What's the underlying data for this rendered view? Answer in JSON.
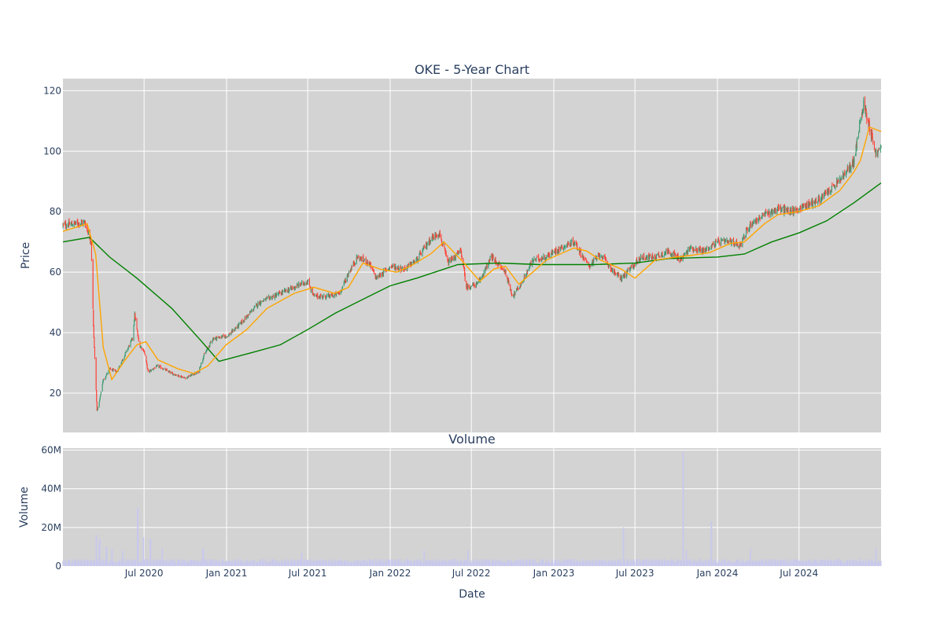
{
  "chart_data": [
    {
      "type": "candlestick",
      "title": "OKE - 5-Year Chart",
      "ylabel": "Price",
      "xlabel": "",
      "x_range": [
        "2020-01-02",
        "2024-12-31"
      ],
      "ylim": [
        7,
        124
      ],
      "y_ticks": [
        20,
        40,
        60,
        80,
        100,
        120
      ],
      "grid": true,
      "background": "#d3d3d3",
      "colors": {
        "up": "#3d9970",
        "down": "#ff4136",
        "ma_short": "#ffa500",
        "ma_long": "#008000"
      },
      "close_keypoints": [
        [
          "2020-01-02",
          75.5
        ],
        [
          "2020-02-20",
          76.5
        ],
        [
          "2020-03-05",
          70
        ],
        [
          "2020-03-10",
          42
        ],
        [
          "2020-03-18",
          14
        ],
        [
          "2020-03-23",
          17
        ],
        [
          "2020-03-31",
          24
        ],
        [
          "2020-04-15",
          28
        ],
        [
          "2020-05-01",
          27
        ],
        [
          "2020-05-20",
          33
        ],
        [
          "2020-06-05",
          38
        ],
        [
          "2020-06-10",
          46
        ],
        [
          "2020-06-20",
          36
        ],
        [
          "2020-07-01",
          34
        ],
        [
          "2020-07-10",
          27
        ],
        [
          "2020-08-01",
          29
        ],
        [
          "2020-09-01",
          26.5
        ],
        [
          "2020-10-01",
          25
        ],
        [
          "2020-10-30",
          27
        ],
        [
          "2020-11-10",
          32
        ],
        [
          "2020-12-01",
          38
        ],
        [
          "2021-01-04",
          39
        ],
        [
          "2021-02-01",
          43
        ],
        [
          "2021-03-15",
          50
        ],
        [
          "2021-05-01",
          53
        ],
        [
          "2021-06-01",
          55
        ],
        [
          "2021-07-01",
          57
        ],
        [
          "2021-07-15",
          52
        ],
        [
          "2021-08-20",
          52
        ],
        [
          "2021-09-10",
          53
        ],
        [
          "2021-10-01",
          60
        ],
        [
          "2021-10-20",
          65
        ],
        [
          "2021-11-15",
          63
        ],
        [
          "2021-12-01",
          58
        ],
        [
          "2022-01-03",
          62
        ],
        [
          "2022-02-01",
          61
        ],
        [
          "2022-03-01",
          64
        ],
        [
          "2022-04-01",
          71
        ],
        [
          "2022-04-20",
          73
        ],
        [
          "2022-05-10",
          63
        ],
        [
          "2022-06-08",
          67
        ],
        [
          "2022-06-20",
          55
        ],
        [
          "2022-07-15",
          56
        ],
        [
          "2022-08-15",
          65
        ],
        [
          "2022-09-15",
          60
        ],
        [
          "2022-10-01",
          52
        ],
        [
          "2022-10-20",
          56
        ],
        [
          "2022-11-15",
          64
        ],
        [
          "2022-12-15",
          65
        ],
        [
          "2023-01-15",
          68
        ],
        [
          "2023-02-15",
          70
        ],
        [
          "2023-03-20",
          62
        ],
        [
          "2023-04-15",
          66
        ],
        [
          "2023-05-15",
          60
        ],
        [
          "2023-06-01",
          58
        ],
        [
          "2023-06-20",
          61
        ],
        [
          "2023-07-15",
          65
        ],
        [
          "2023-08-15",
          65
        ],
        [
          "2023-09-15",
          67
        ],
        [
          "2023-10-10",
          64
        ],
        [
          "2023-11-01",
          68
        ],
        [
          "2023-12-01",
          67
        ],
        [
          "2024-01-02",
          70
        ],
        [
          "2024-02-01",
          70
        ],
        [
          "2024-02-20",
          69
        ],
        [
          "2024-03-15",
          76
        ],
        [
          "2024-04-15",
          79
        ],
        [
          "2024-05-15",
          81
        ],
        [
          "2024-06-15",
          80
        ],
        [
          "2024-07-15",
          82
        ],
        [
          "2024-08-15",
          84
        ],
        [
          "2024-09-15",
          88
        ],
        [
          "2024-10-15",
          93
        ],
        [
          "2024-11-01",
          97
        ],
        [
          "2024-11-06",
          102
        ],
        [
          "2024-11-22",
          116
        ],
        [
          "2024-12-10",
          105
        ],
        [
          "2024-12-20",
          99
        ],
        [
          "2024-12-31",
          101
        ]
      ],
      "ma_short": {
        "points": [
          [
            "2020-01-02",
            73.5
          ],
          [
            "2020-02-25",
            76
          ],
          [
            "2020-03-15",
            66
          ],
          [
            "2020-04-01",
            35
          ],
          [
            "2020-04-20",
            24.5
          ],
          [
            "2020-05-20",
            31
          ],
          [
            "2020-06-15",
            36
          ],
          [
            "2020-07-05",
            37
          ],
          [
            "2020-08-01",
            31
          ],
          [
            "2020-09-15",
            28
          ],
          [
            "2020-10-20",
            26.5
          ],
          [
            "2020-11-20",
            29
          ],
          [
            "2020-12-31",
            36
          ],
          [
            "2021-02-15",
            41
          ],
          [
            "2021-04-01",
            48
          ],
          [
            "2021-06-01",
            53
          ],
          [
            "2021-07-15",
            55
          ],
          [
            "2021-08-30",
            53
          ],
          [
            "2021-09-30",
            55
          ],
          [
            "2021-11-01",
            63
          ],
          [
            "2021-12-10",
            61
          ],
          [
            "2022-01-15",
            60
          ],
          [
            "2022-02-15",
            62
          ],
          [
            "2022-04-01",
            66
          ],
          [
            "2022-05-01",
            70
          ],
          [
            "2022-06-15",
            63
          ],
          [
            "2022-07-20",
            57
          ],
          [
            "2022-08-20",
            61
          ],
          [
            "2022-09-15",
            62
          ],
          [
            "2022-10-15",
            56
          ],
          [
            "2022-11-15",
            60
          ],
          [
            "2022-12-15",
            64
          ],
          [
            "2023-01-15",
            66
          ],
          [
            "2023-02-15",
            68
          ],
          [
            "2023-03-15",
            67
          ],
          [
            "2023-04-15",
            64
          ],
          [
            "2023-06-01",
            61
          ],
          [
            "2023-07-01",
            58
          ],
          [
            "2023-08-15",
            64
          ],
          [
            "2023-09-30",
            65
          ],
          [
            "2023-11-01",
            65.5
          ],
          [
            "2023-12-15",
            66.5
          ],
          [
            "2024-01-30",
            69.5
          ],
          [
            "2024-03-01",
            70
          ],
          [
            "2024-04-15",
            76
          ],
          [
            "2024-05-15",
            79
          ],
          [
            "2024-06-30",
            80
          ],
          [
            "2024-08-15",
            82
          ],
          [
            "2024-09-30",
            87
          ],
          [
            "2024-10-31",
            93
          ],
          [
            "2024-11-15",
            97
          ],
          [
            "2024-12-05",
            108
          ],
          [
            "2024-12-31",
            106.5
          ]
        ]
      },
      "ma_long": {
        "points": [
          [
            "2020-01-02",
            70
          ],
          [
            "2020-03-01",
            71.5
          ],
          [
            "2020-04-15",
            65
          ],
          [
            "2020-06-15",
            58
          ],
          [
            "2020-09-01",
            48
          ],
          [
            "2020-11-01",
            38
          ],
          [
            "2020-12-15",
            30.5
          ],
          [
            "2021-03-01",
            33.5
          ],
          [
            "2021-05-01",
            36
          ],
          [
            "2021-07-01",
            41
          ],
          [
            "2021-09-01",
            46.5
          ],
          [
            "2021-11-01",
            51
          ],
          [
            "2022-01-01",
            55.5
          ],
          [
            "2022-03-01",
            58
          ],
          [
            "2022-06-01",
            62.5
          ],
          [
            "2022-09-01",
            63
          ],
          [
            "2022-12-01",
            62.5
          ],
          [
            "2023-04-01",
            62.5
          ],
          [
            "2023-07-01",
            63
          ],
          [
            "2023-09-15",
            64.5
          ],
          [
            "2024-01-01",
            65
          ],
          [
            "2024-03-01",
            66
          ],
          [
            "2024-05-01",
            70
          ],
          [
            "2024-07-01",
            73
          ],
          [
            "2024-09-01",
            77
          ],
          [
            "2024-11-01",
            83
          ],
          [
            "2024-12-31",
            89.5
          ]
        ]
      }
    },
    {
      "type": "bar",
      "title": "Volume",
      "xlabel": "Date",
      "ylabel": "Volume",
      "ylim": [
        0,
        61000000
      ],
      "y_ticks": [
        {
          "value": 0,
          "label": "0"
        },
        {
          "value": 20000000,
          "label": "20M"
        },
        {
          "value": 40000000,
          "label": "40M"
        },
        {
          "value": 60000000,
          "label": "60M"
        }
      ],
      "x_ticks": [
        {
          "date": "2020-07-01",
          "label": "Jul 2020"
        },
        {
          "date": "2021-01-01",
          "label": "Jan 2021"
        },
        {
          "date": "2021-07-01",
          "label": "Jul 2021"
        },
        {
          "date": "2022-01-01",
          "label": "Jan 2022"
        },
        {
          "date": "2022-07-01",
          "label": "Jul 2022"
        },
        {
          "date": "2023-01-01",
          "label": "Jan 2023"
        },
        {
          "date": "2023-07-01",
          "label": "Jul 2023"
        },
        {
          "date": "2024-01-01",
          "label": "Jan 2024"
        },
        {
          "date": "2024-07-01",
          "label": "Jul 2024"
        }
      ],
      "bar_color": "#c8c8ee",
      "baseline_volume": 2500000,
      "spikes": [
        [
          "2020-03-16",
          16000000
        ],
        [
          "2020-03-24",
          14000000
        ],
        [
          "2020-04-08",
          10000000
        ],
        [
          "2020-04-20",
          9000000
        ],
        [
          "2020-05-15",
          8000000
        ],
        [
          "2020-06-17",
          30000000
        ],
        [
          "2020-06-29",
          15000000
        ],
        [
          "2020-07-15",
          14000000
        ],
        [
          "2020-08-10",
          9000000
        ],
        [
          "2020-11-10",
          9000000
        ],
        [
          "2021-06-18",
          7000000
        ],
        [
          "2022-03-18",
          8000000
        ],
        [
          "2022-06-24",
          8000000
        ],
        [
          "2023-06-05",
          20000000
        ],
        [
          "2023-10-16",
          59000000
        ],
        [
          "2023-10-23",
          8000000
        ],
        [
          "2023-12-18",
          23000000
        ],
        [
          "2024-03-15",
          9000000
        ],
        [
          "2024-12-20",
          9000000
        ]
      ]
    }
  ]
}
